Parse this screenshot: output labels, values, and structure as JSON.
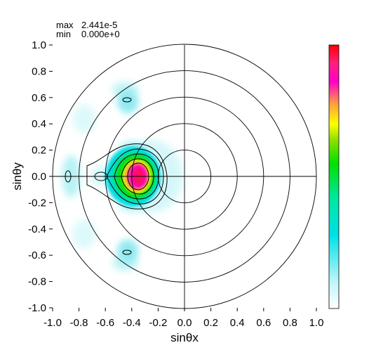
{
  "info": {
    "max_label": "max",
    "max_value": "2.441e-5",
    "min_label": "min",
    "min_value": "0.000e+0"
  },
  "chart_data": {
    "type": "heatmap",
    "title": "",
    "xlabel": "sinθx",
    "ylabel": "sinθy",
    "xlim": [
      -1.0,
      1.0
    ],
    "ylim": [
      -1.0,
      1.0
    ],
    "x_ticks": [
      "-1.0",
      "-0.8",
      "-0.6",
      "-0.4",
      "-0.2",
      "0.0",
      "0.2",
      "0.4",
      "0.6",
      "0.8",
      "1.0"
    ],
    "y_ticks": [
      "1.0",
      "0.8",
      "0.6",
      "0.4",
      "0.2",
      "0.0",
      "-0.2",
      "-0.4",
      "-0.6",
      "-0.8",
      "-1.0"
    ],
    "polar_grid_radii": [
      0.2,
      0.4,
      0.6,
      0.8,
      1.0
    ],
    "value_max": 2.441e-05,
    "value_min": 0.0,
    "colorbar": [
      "#ffffff",
      "#00e5ee",
      "#00ee00",
      "#ffff00",
      "#ff00ff",
      "#ff0000"
    ],
    "main_peak": {
      "x": -0.35,
      "y": 0.0
    },
    "side_lobes": [
      {
        "x": -0.42,
        "y": 0.58
      },
      {
        "x": -0.42,
        "y": -0.58
      },
      {
        "x": -0.88,
        "y": 0.0
      }
    ]
  }
}
